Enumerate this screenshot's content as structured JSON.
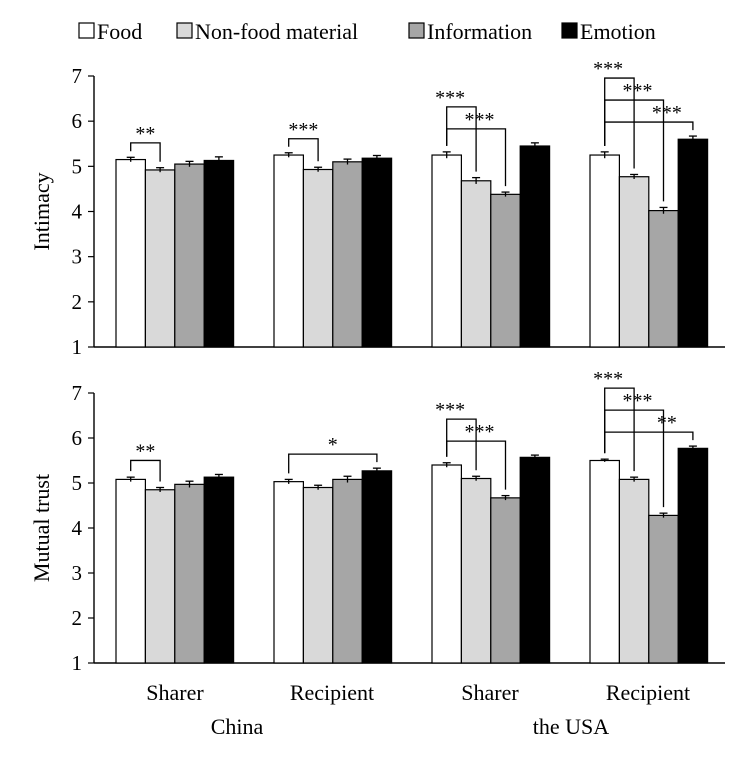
{
  "legend": [
    {
      "label": "Food",
      "color": "#ffffff"
    },
    {
      "label": "Non-food material",
      "color": "#d9d9d9"
    },
    {
      "label": "Information",
      "color": "#a6a6a6"
    },
    {
      "label": "Emotion",
      "color": "#000000"
    }
  ],
  "groups": [
    {
      "label": "Sharer",
      "country": "China"
    },
    {
      "label": "Recipient",
      "country": "China"
    },
    {
      "label": "Sharer",
      "country": "the USA"
    },
    {
      "label": "Recipient",
      "country": "the USA"
    }
  ],
  "countries": [
    "China",
    "the USA"
  ],
  "chart_data": [
    {
      "type": "bar",
      "ylabel": "Intimacy",
      "ylim": [
        1,
        7
      ],
      "yticks": [
        1,
        2,
        3,
        4,
        5,
        6,
        7
      ],
      "categories": [
        "Sharer",
        "Recipient",
        "Sharer",
        "Recipient"
      ],
      "series": [
        {
          "name": "Food",
          "values": [
            5.15,
            5.25,
            5.25,
            5.25
          ],
          "errors": [
            0.05,
            0.05,
            0.07,
            0.07
          ]
        },
        {
          "name": "Non-food material",
          "values": [
            4.92,
            4.93,
            4.68,
            4.77
          ],
          "errors": [
            0.05,
            0.05,
            0.07,
            0.05
          ]
        },
        {
          "name": "Information",
          "values": [
            5.05,
            5.1,
            4.38,
            4.02
          ],
          "errors": [
            0.06,
            0.06,
            0.05,
            0.07
          ]
        },
        {
          "name": "Emotion",
          "values": [
            5.13,
            5.18,
            5.45,
            5.6
          ],
          "errors": [
            0.08,
            0.06,
            0.07,
            0.07
          ]
        }
      ],
      "significance": [
        {
          "group": 0,
          "from": 0,
          "to": 1,
          "level": 0,
          "label": "**"
        },
        {
          "group": 1,
          "from": 0,
          "to": 1,
          "level": 0,
          "label": "***"
        },
        {
          "group": 2,
          "from": 0,
          "to": 1,
          "level": 1,
          "label": "***"
        },
        {
          "group": 2,
          "from": 0,
          "to": 2,
          "level": 0,
          "label": "***"
        },
        {
          "group": 3,
          "from": 0,
          "to": 1,
          "level": 2,
          "label": "***"
        },
        {
          "group": 3,
          "from": 0,
          "to": 2,
          "level": 1,
          "label": "***"
        },
        {
          "group": 3,
          "from": 0,
          "to": 3,
          "level": 0,
          "label": "***"
        }
      ]
    },
    {
      "type": "bar",
      "ylabel": "Mutual trust",
      "ylim": [
        1,
        7
      ],
      "yticks": [
        1,
        2,
        3,
        4,
        5,
        6,
        7
      ],
      "categories": [
        "Sharer",
        "Recipient",
        "Sharer",
        "Recipient"
      ],
      "series": [
        {
          "name": "Food",
          "values": [
            5.08,
            5.03,
            5.4,
            5.5
          ],
          "errors": [
            0.05,
            0.05,
            0.05,
            0.03
          ]
        },
        {
          "name": "Non-food material",
          "values": [
            4.85,
            4.9,
            5.1,
            5.08
          ],
          "errors": [
            0.05,
            0.05,
            0.05,
            0.05
          ]
        },
        {
          "name": "Information",
          "values": [
            4.97,
            5.08,
            4.67,
            4.28
          ],
          "errors": [
            0.07,
            0.07,
            0.05,
            0.05
          ]
        },
        {
          "name": "Emotion",
          "values": [
            5.13,
            5.27,
            5.57,
            5.77
          ],
          "errors": [
            0.06,
            0.06,
            0.05,
            0.05
          ]
        }
      ],
      "significance": [
        {
          "group": 0,
          "from": 0,
          "to": 1,
          "level": 0,
          "label": "**"
        },
        {
          "group": 1,
          "from": 0,
          "to": 3,
          "level": 0,
          "label": "*"
        },
        {
          "group": 2,
          "from": 0,
          "to": 1,
          "level": 1,
          "label": "***"
        },
        {
          "group": 2,
          "from": 0,
          "to": 2,
          "level": 0,
          "label": "***"
        },
        {
          "group": 3,
          "from": 0,
          "to": 1,
          "level": 2,
          "label": "***"
        },
        {
          "group": 3,
          "from": 0,
          "to": 2,
          "level": 1,
          "label": "***"
        },
        {
          "group": 3,
          "from": 0,
          "to": 3,
          "level": 0,
          "label": "**"
        }
      ]
    }
  ]
}
